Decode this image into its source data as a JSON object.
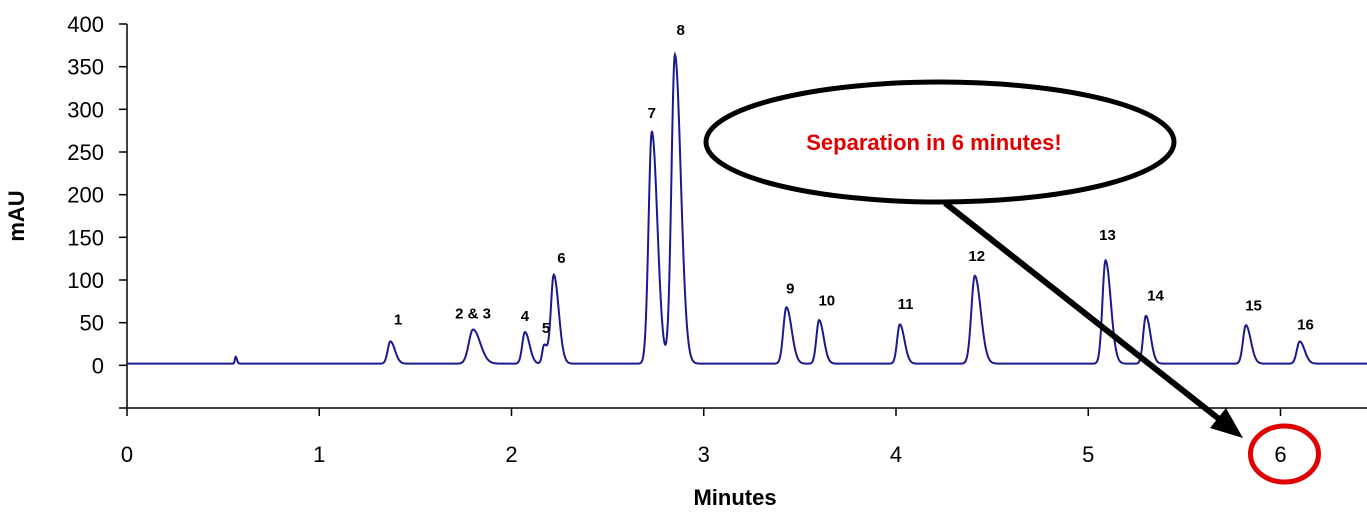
{
  "chart_data": {
    "type": "line",
    "title": "",
    "xlabel": "Minutes",
    "ylabel": "mAU",
    "xlim": [
      0,
      6.45
    ],
    "ylim": [
      -50,
      400
    ],
    "x_ticks": [
      "0",
      "1",
      "2",
      "3",
      "4",
      "5",
      "6"
    ],
    "y_ticks": [
      "0",
      "50",
      "100",
      "150",
      "200",
      "250",
      "300",
      "350",
      "400"
    ],
    "grid": false,
    "line_color": "#1a1a8c",
    "baseline": 2,
    "series": [
      {
        "peaks": [
          {
            "x": 0.565,
            "h": 8,
            "w": 0.004
          },
          {
            "x": 1.37,
            "h": 26,
            "w": 0.014
          },
          {
            "x": 1.8,
            "h": 40,
            "w": 0.022
          },
          {
            "x": 2.07,
            "h": 37,
            "w": 0.014
          },
          {
            "x": 2.17,
            "h": 22,
            "w": 0.01
          },
          {
            "x": 2.22,
            "h": 104,
            "w": 0.015
          },
          {
            "x": 2.73,
            "h": 272,
            "w": 0.017
          },
          {
            "x": 2.85,
            "h": 362,
            "w": 0.018
          },
          {
            "x": 3.43,
            "h": 66,
            "w": 0.016
          },
          {
            "x": 3.6,
            "h": 51,
            "w": 0.014
          },
          {
            "x": 4.02,
            "h": 46,
            "w": 0.014
          },
          {
            "x": 4.41,
            "h": 103,
            "w": 0.018
          },
          {
            "x": 5.09,
            "h": 121,
            "w": 0.016
          },
          {
            "x": 5.3,
            "h": 56,
            "w": 0.014
          },
          {
            "x": 5.82,
            "h": 45,
            "w": 0.015
          },
          {
            "x": 6.1,
            "h": 26,
            "w": 0.015
          }
        ]
      }
    ],
    "peak_labels": [
      {
        "text": "1",
        "x": 1.41,
        "y": 48
      },
      {
        "text": "2 & 3",
        "x": 1.8,
        "y": 55
      },
      {
        "text": "4",
        "x": 2.07,
        "y": 52
      },
      {
        "text": "5",
        "x": 2.18,
        "y": 38
      },
      {
        "text": "6",
        "x": 2.26,
        "y": 120
      },
      {
        "text": "7",
        "x": 2.73,
        "y": 290
      },
      {
        "text": "8",
        "x": 2.88,
        "y": 387
      },
      {
        "text": "9",
        "x": 3.45,
        "y": 84
      },
      {
        "text": "10",
        "x": 3.64,
        "y": 70
      },
      {
        "text": "11",
        "x": 4.05,
        "y": 66
      },
      {
        "text": "12",
        "x": 4.42,
        "y": 122
      },
      {
        "text": "13",
        "x": 5.1,
        "y": 147
      },
      {
        "text": "14",
        "x": 5.35,
        "y": 76
      },
      {
        "text": "15",
        "x": 5.86,
        "y": 64
      },
      {
        "text": "16",
        "x": 6.13,
        "y": 42
      }
    ],
    "annotation": {
      "text": "Separation in 6 minutes!",
      "text_color": "#e00000",
      "highlight_tick": "6",
      "highlight_color": "#e00000"
    }
  }
}
